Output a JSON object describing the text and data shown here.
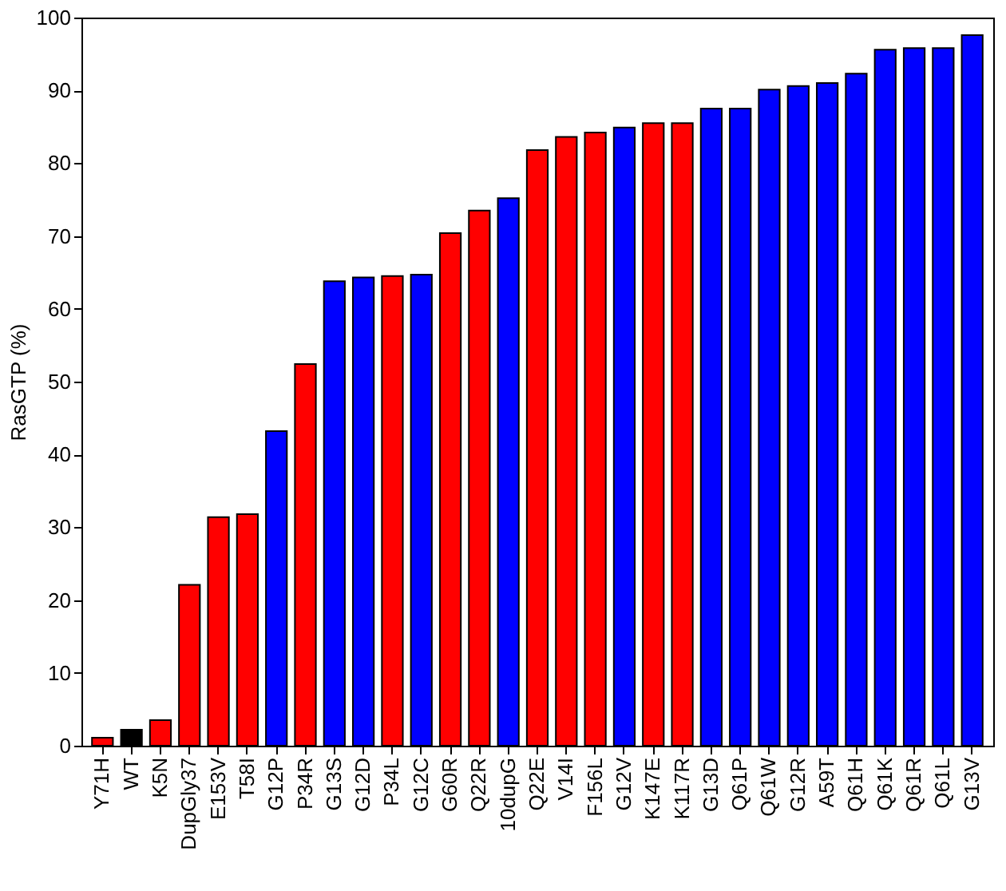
{
  "chart_data": {
    "type": "bar",
    "ylabel": "RasGTP (%)",
    "categories": [
      "Y71H",
      "WT",
      "K5N",
      "DupGly37",
      "E153V",
      "T58I",
      "G12P",
      "P34R",
      "G13S",
      "G12D",
      "P34L",
      "G12C",
      "G60R",
      "Q22R",
      "10dupG",
      "Q22E",
      "V14I",
      "F156L",
      "G12V",
      "K147E",
      "K117R",
      "G13D",
      "Q61P",
      "Q61W",
      "G12R",
      "A59T",
      "Q61H",
      "Q61K",
      "Q61R",
      "Q61L",
      "G13V"
    ],
    "values": [
      1.1,
      2.2,
      3.5,
      22.1,
      31.4,
      31.8,
      43.2,
      52.4,
      63.8,
      64.3,
      64.5,
      64.7,
      70.4,
      73.5,
      75.2,
      81.8,
      83.6,
      84.2,
      84.9,
      85.5,
      85.5,
      87.5,
      87.5,
      90.1,
      90.6,
      91.0,
      92.3,
      95.6,
      95.8,
      95.8,
      97.6
    ],
    "colors": [
      "#ff0000",
      "#000000",
      "#ff0000",
      "#ff0000",
      "#ff0000",
      "#ff0000",
      "#0000ff",
      "#ff0000",
      "#0000ff",
      "#0000ff",
      "#ff0000",
      "#0000ff",
      "#ff0000",
      "#ff0000",
      "#0000ff",
      "#ff0000",
      "#ff0000",
      "#ff0000",
      "#0000ff",
      "#ff0000",
      "#ff0000",
      "#0000ff",
      "#0000ff",
      "#0000ff",
      "#0000ff",
      "#0000ff",
      "#0000ff",
      "#0000ff",
      "#0000ff",
      "#0000ff",
      "#0000ff"
    ],
    "ylim": [
      0,
      100
    ],
    "yticks": [
      0,
      10,
      20,
      30,
      40,
      50,
      60,
      70,
      80,
      90,
      100
    ],
    "grid": false
  }
}
